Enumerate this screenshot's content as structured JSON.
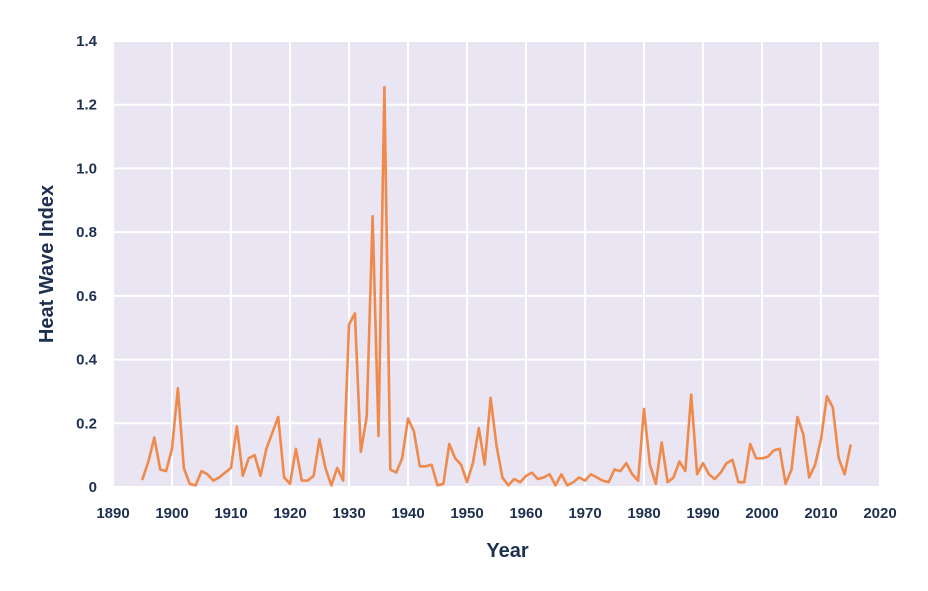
{
  "chart_data": {
    "type": "line",
    "title": "",
    "xlabel": "Year",
    "ylabel": "Heat Wave Index",
    "xlim": [
      1890,
      2020
    ],
    "ylim": [
      0,
      1.4
    ],
    "x_ticks": [
      "1890",
      "1900",
      "1910",
      "1920",
      "1930",
      "1940",
      "1950",
      "1960",
      "1970",
      "1980",
      "1990",
      "2000",
      "2010",
      "2020"
    ],
    "y_ticks": [
      "0",
      "0.2",
      "0.4",
      "0.6",
      "0.8",
      "1.0",
      "1.2",
      "1.4"
    ],
    "grid": true,
    "colors": {
      "line": "#ef8a4c",
      "plot_background": "#e9e5f2",
      "grid": "#ffffff",
      "text": "#1e3050"
    },
    "series": [
      {
        "x": [
          1895,
          1896,
          1897,
          1898,
          1899,
          1900,
          1901,
          1902,
          1903,
          1904,
          1905,
          1906,
          1907,
          1908,
          1909,
          1910,
          1911,
          1912,
          1913,
          1914,
          1915,
          1916,
          1917,
          1918,
          1919,
          1920,
          1921,
          1922,
          1923,
          1924,
          1925,
          1926,
          1927,
          1928,
          1929,
          1930,
          1931,
          1932,
          1933,
          1934,
          1935,
          1936,
          1937,
          1938,
          1939,
          1940,
          1941,
          1942,
          1943,
          1944,
          1945,
          1946,
          1947,
          1948,
          1949,
          1950,
          1951,
          1952,
          1953,
          1954,
          1955,
          1956,
          1957,
          1958,
          1959,
          1960,
          1961,
          1962,
          1963,
          1964,
          1965,
          1966,
          1967,
          1968,
          1969,
          1970,
          1971,
          1972,
          1973,
          1974,
          1975,
          1976,
          1977,
          1978,
          1979,
          1980,
          1981,
          1982,
          1983,
          1984,
          1985,
          1986,
          1987,
          1988,
          1989,
          1990,
          1991,
          1992,
          1993,
          1994,
          1995,
          1996,
          1997,
          1998,
          1999,
          2000,
          2001,
          2002,
          2003,
          2004,
          2005,
          2006,
          2007,
          2008,
          2009,
          2010,
          2011,
          2012,
          2013,
          2014,
          2015
        ],
        "values": [
          0.025,
          0.08,
          0.155,
          0.055,
          0.05,
          0.12,
          0.31,
          0.06,
          0.01,
          0.005,
          0.05,
          0.04,
          0.02,
          0.03,
          0.045,
          0.06,
          0.19,
          0.035,
          0.09,
          0.1,
          0.035,
          0.12,
          0.17,
          0.22,
          0.03,
          0.01,
          0.12,
          0.02,
          0.02,
          0.035,
          0.15,
          0.06,
          0.005,
          0.06,
          0.02,
          0.51,
          0.545,
          0.11,
          0.22,
          0.85,
          0.16,
          1.255,
          0.055,
          0.045,
          0.09,
          0.215,
          0.175,
          0.065,
          0.065,
          0.07,
          0.005,
          0.01,
          0.135,
          0.09,
          0.07,
          0.015,
          0.075,
          0.185,
          0.07,
          0.28,
          0.13,
          0.03,
          0.005,
          0.025,
          0.015,
          0.035,
          0.045,
          0.025,
          0.03,
          0.04,
          0.005,
          0.04,
          0.005,
          0.015,
          0.03,
          0.02,
          0.04,
          0.03,
          0.02,
          0.015,
          0.055,
          0.05,
          0.075,
          0.04,
          0.02,
          0.245,
          0.07,
          0.01,
          0.14,
          0.015,
          0.03,
          0.08,
          0.05,
          0.29,
          0.04,
          0.075,
          0.04,
          0.025,
          0.045,
          0.075,
          0.085,
          0.015,
          0.015,
          0.135,
          0.09,
          0.09,
          0.095,
          0.115,
          0.12,
          0.01,
          0.055,
          0.22,
          0.165,
          0.03,
          0.07,
          0.15,
          0.285,
          0.25,
          0.09,
          0.04,
          0.13
        ]
      }
    ]
  }
}
